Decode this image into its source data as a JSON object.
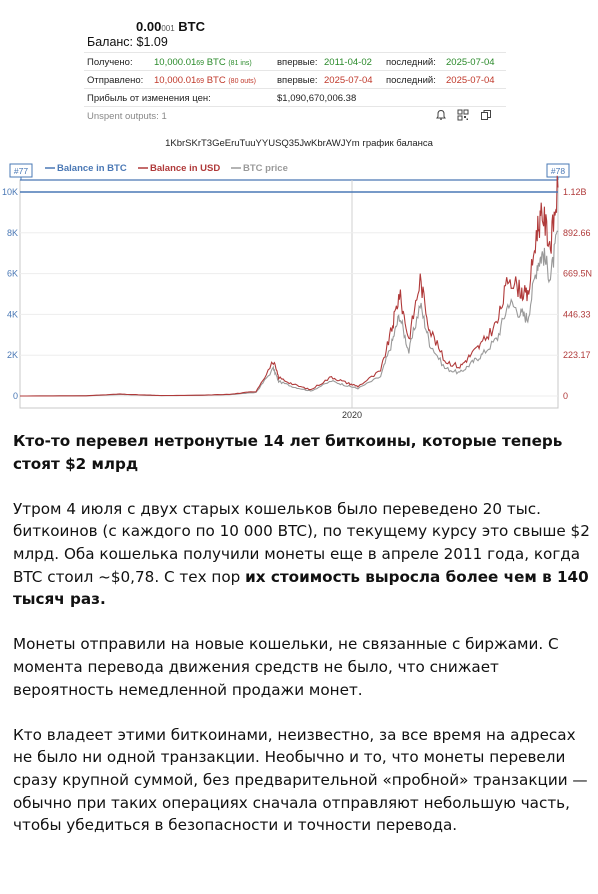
{
  "wallet": {
    "amount_main": "0.00",
    "amount_small": "001",
    "amount_unit": "BTC",
    "balance": "Баланс: $1.09",
    "received": {
      "label": "Получено:",
      "main": "10,000.01",
      "small": "69",
      "unit": "BTC",
      "count": "(81 ins)",
      "first_label": "впервые:",
      "first": "2011-04-02",
      "last_label": "последний:",
      "last": "2025-07-04"
    },
    "sent": {
      "label": "Отправлено:",
      "main": "10,000.01",
      "small": "69",
      "unit": "BTC",
      "count": "(80 outs)",
      "first_label": "впервые:",
      "first": "2025-07-04",
      "last_label": "последний:",
      "last": "2025-07-04"
    },
    "profit": {
      "label": "Прибыль от изменения цен:",
      "value": "$1,090,670,006.38"
    },
    "unspent": "Unspent outputs: 1",
    "icons": [
      "bell-icon",
      "qr-icon",
      "copy-icon"
    ],
    "colors": {
      "green": "#2a8a2a",
      "red": "#c0392b"
    }
  },
  "chart_caption": "1KbrSKrT3GeEruTuuYYUSQ35JwKbrAWJYm график баланса",
  "chart_data": {
    "type": "line",
    "legend": [
      "Balance in BTC",
      "Balance in USD",
      "BTC price"
    ],
    "legend_position": "top-left",
    "marker_left": "#77",
    "marker_right": "#78",
    "x_tick": "2020",
    "left_ticks": [
      "10K",
      "8K",
      "6K",
      "4K",
      "2K",
      "0"
    ],
    "right_ticks": [
      "1.12B",
      "892.66",
      "669.5N",
      "446.33",
      "223.17",
      "0"
    ],
    "left_ylim": [
      0,
      10000
    ],
    "series": [
      {
        "name": "Balance in BTC",
        "color": "#4a78b5",
        "x": [
          2011.25,
          2025.5
        ],
        "y": [
          10000,
          10000
        ]
      },
      {
        "name": "Balance in USD",
        "color": "#b03a3a",
        "x": [
          2011.25,
          2013.0,
          2013.9,
          2014.5,
          2015.0,
          2016.0,
          2016.8,
          2017.5,
          2017.96,
          2018.1,
          2018.5,
          2018.95,
          2019.5,
          2019.9,
          2020.2,
          2020.8,
          2021.1,
          2021.3,
          2021.55,
          2021.85,
          2022.1,
          2022.5,
          2022.9,
          2023.2,
          2023.5,
          2023.9,
          2024.2,
          2024.5,
          2024.7,
          2024.95,
          2025.1,
          2025.3,
          2025.5
        ],
        "y": [
          0.01,
          0.13,
          1.1,
          0.6,
          0.25,
          0.42,
          0.95,
          2.6,
          19.5,
          10.5,
          6.5,
          3.5,
          10.8,
          7.5,
          5.5,
          14.0,
          38.0,
          58.0,
          32.0,
          66.0,
          38.0,
          20.0,
          16.5,
          23.5,
          30.0,
          42.0,
          68.0,
          60.0,
          56.0,
          95.0,
          103.0,
          85.0,
          118.0
        ]
      },
      {
        "name": "BTC price",
        "color": "#9a9a9a",
        "x": [
          2011.25,
          2013.0,
          2013.9,
          2014.5,
          2015.0,
          2016.0,
          2016.8,
          2017.5,
          2017.96,
          2018.1,
          2018.5,
          2018.95,
          2019.5,
          2019.9,
          2020.2,
          2020.8,
          2021.1,
          2021.3,
          2021.55,
          2021.85,
          2022.1,
          2022.5,
          2022.9,
          2023.2,
          2023.5,
          2023.9,
          2024.2,
          2024.5,
          2024.7,
          2024.95,
          2025.1,
          2025.3,
          2025.5
        ],
        "y": [
          0.01,
          0.1,
          0.85,
          0.47,
          0.2,
          0.33,
          0.75,
          2.0,
          15.5,
          8.3,
          5.1,
          2.8,
          8.5,
          5.9,
          4.3,
          11.0,
          30.0,
          46.0,
          25.0,
          52.0,
          30.0,
          15.8,
          13.0,
          18.5,
          23.6,
          33.0,
          53.5,
          47.0,
          44.0,
          75.0,
          81.0,
          67.0,
          93.0
        ]
      }
    ]
  },
  "article": {
    "headline": "Кто-то перевел нетронутые 14 лет биткоины, которые теперь стоят $2 млрд",
    "p1_text": "Утром 4 июля с двух старых кошельков было переведено 20 тыс. биткоинов (с каждого по 10 000 BTC), по текущему курсу это свыше $2 млрд. Оба кошелька получили монеты еще в апреле 2011 года, когда BTC стоил ~$0,78. С тех пор ",
    "p1_bold": "их стоимость выросла более чем в 140 тысяч раз.",
    "p2": "Монеты отправили на новые кошельки, не связанные с биржами. С момента перевода движения средств не было, что снижает вероятность немедленной продажи монет.",
    "p3": "Кто владеет этими биткоинами, неизвестно, за все время на адресах не было ни одной транзакции. Необычно и то, что монеты перевели сразу крупной суммой, без предварительной «пробной» транзакции — обычно при таких операциях сначала отправляют небольшую часть, чтобы убедиться в безопасности и точности перевода."
  }
}
